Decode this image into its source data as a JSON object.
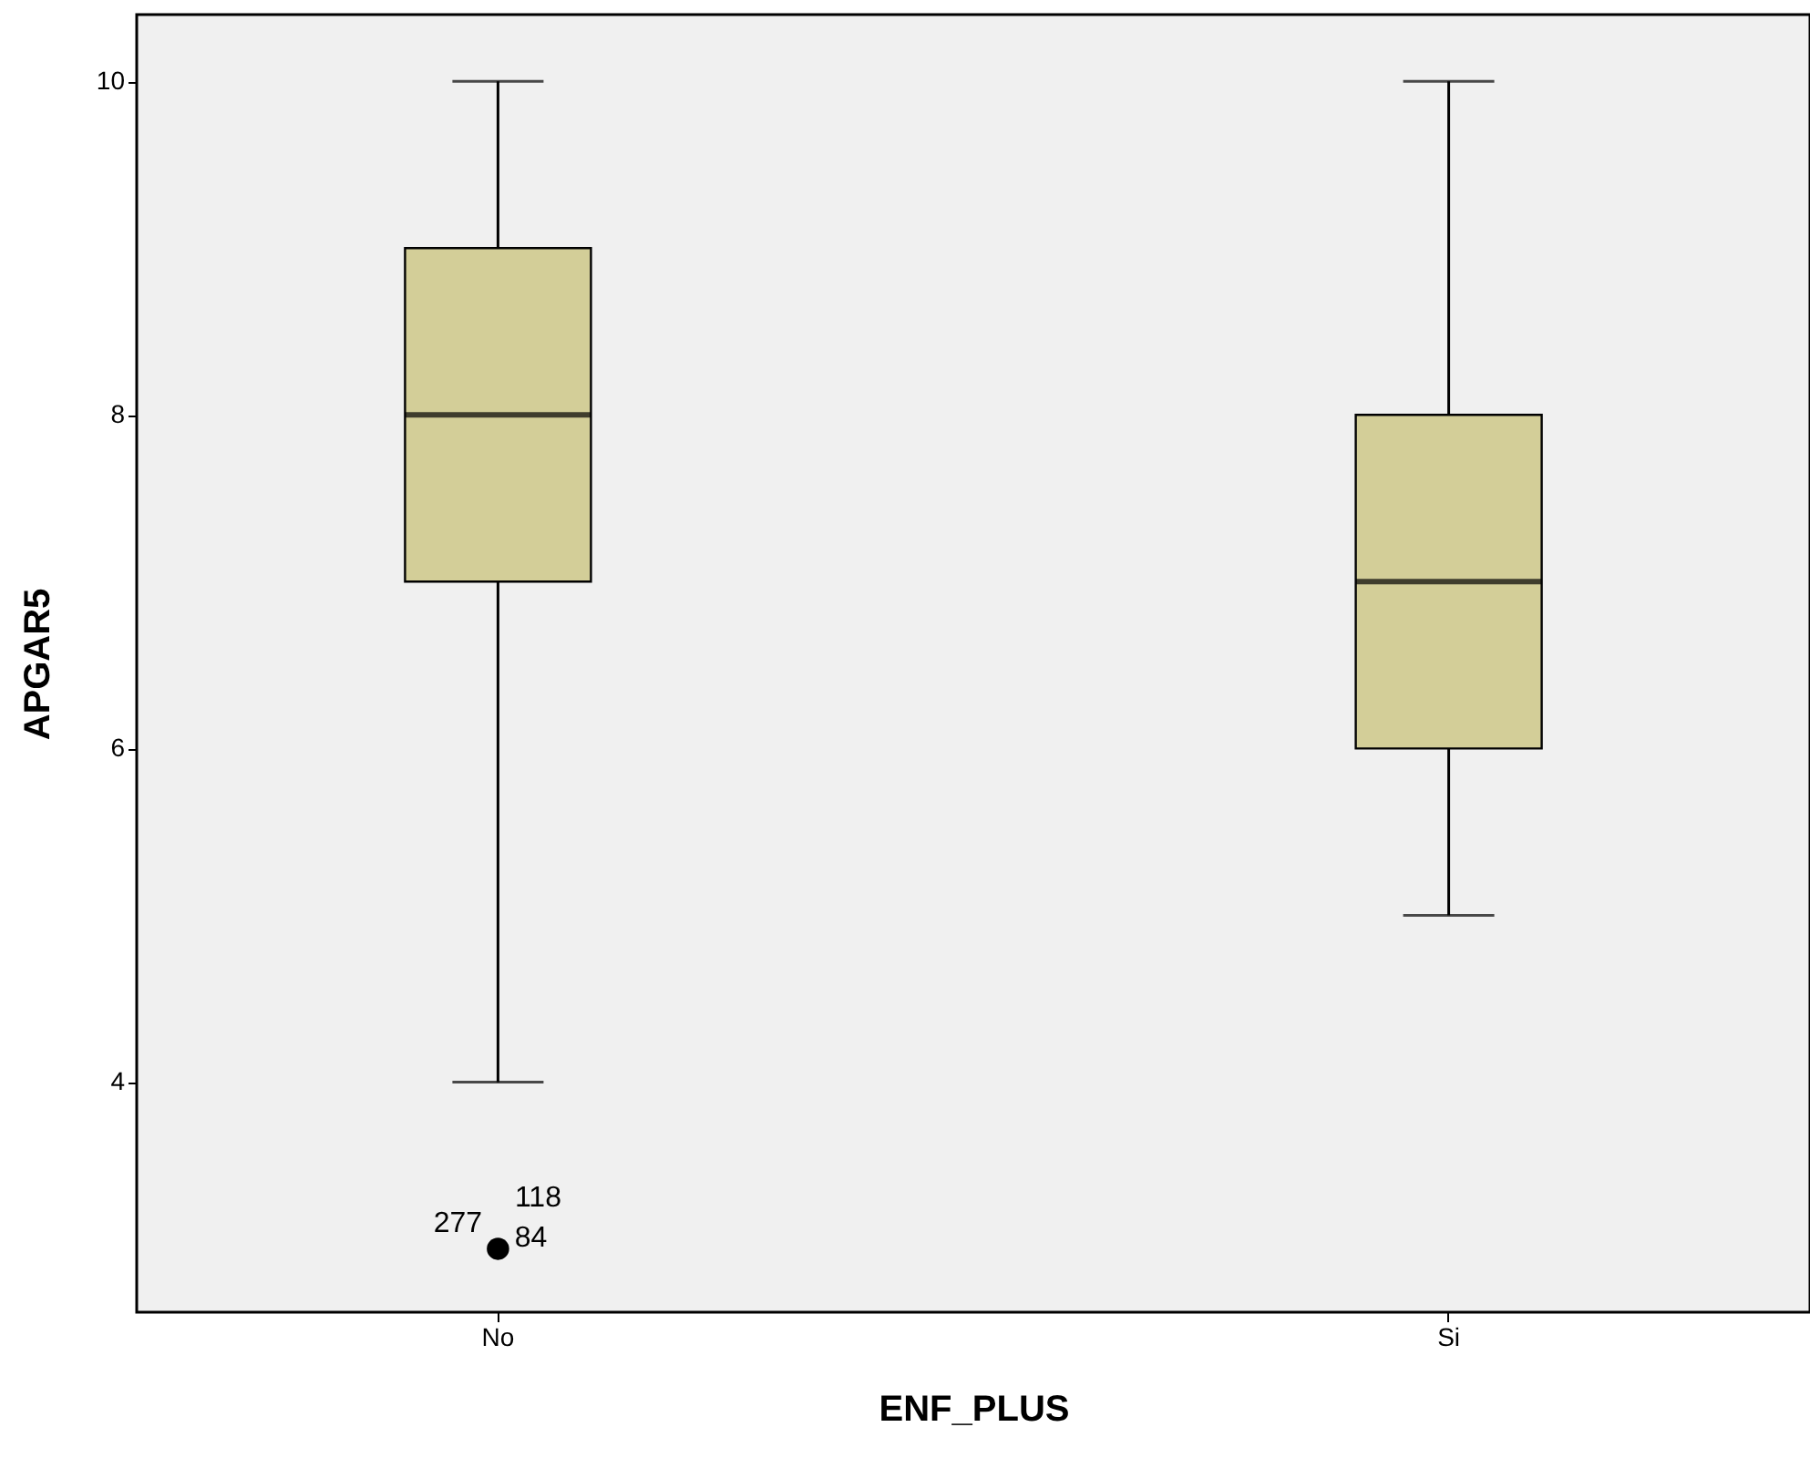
{
  "chart_data": {
    "type": "box",
    "xlabel": "ENF_PLUS",
    "ylabel": "APGAR5",
    "categories": [
      "No",
      "Si"
    ],
    "boxes": [
      {
        "low": 4,
        "q1": 7,
        "median": 8,
        "q3": 9,
        "high": 10,
        "outliers": [
          3
        ]
      },
      {
        "low": 5,
        "q1": 6,
        "median": 7,
        "q3": 8,
        "high": 10
      }
    ],
    "color": "#d3ce98",
    "ylim": [
      2.62,
      10.4
    ],
    "yticks": [
      4,
      6,
      8,
      10
    ],
    "grid": false,
    "annotations": [
      "277",
      "118",
      "84"
    ]
  }
}
